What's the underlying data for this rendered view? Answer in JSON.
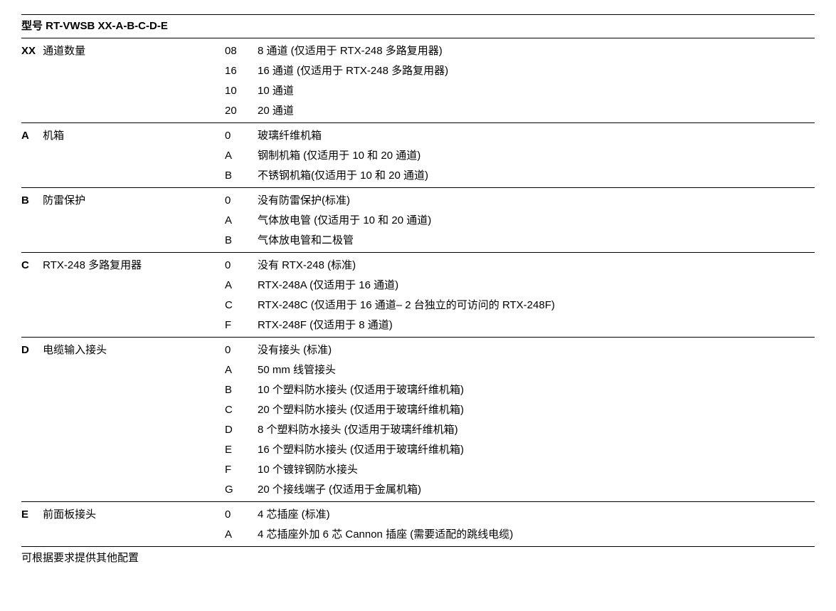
{
  "header": "型号 RT-VWSB XX-A-B-C-D-E",
  "footer": "可根据要求提供其他配置",
  "sections": [
    {
      "code": "XX",
      "label": "通道数量",
      "options": [
        {
          "c": "08",
          "d": "8 通道 (仅适用于 RTX-248 多路复用器)"
        },
        {
          "c": "16",
          "d": "16 通道 (仅适用于 RTX-248 多路复用器)"
        },
        {
          "c": "10",
          "d": "10 通道"
        },
        {
          "c": "20",
          "d": "20 通道"
        }
      ]
    },
    {
      "code": "A",
      "label": "机箱",
      "options": [
        {
          "c": "0",
          "d": "玻璃纤维机箱"
        },
        {
          "c": "A",
          "d": "钢制机箱 (仅适用于 10 和 20 通道)"
        },
        {
          "c": "B",
          "d": "不锈钢机箱(仅适用于 10 和 20 通道)"
        }
      ]
    },
    {
      "code": "B",
      "label": "防雷保护",
      "options": [
        {
          "c": "0",
          "d": "没有防雷保护(标准)"
        },
        {
          "c": "A",
          "d": "气体放电管 (仅适用于 10 和 20 通道)"
        },
        {
          "c": "B",
          "d": "气体放电管和二极管"
        }
      ]
    },
    {
      "code": "C",
      "label": "RTX-248 多路复用器",
      "options": [
        {
          "c": "0",
          "d": "没有 RTX-248 (标准)"
        },
        {
          "c": "A",
          "d": "RTX-248A (仅适用于 16 通道)"
        },
        {
          "c": "C",
          "d": "RTX-248C (仅适用于 16 通道– 2 台独立的可访问的 RTX-248F)"
        },
        {
          "c": "F",
          "d": "RTX-248F (仅适用于 8 通道)"
        }
      ]
    },
    {
      "code": "D",
      "label": "电缆输入接头",
      "options": [
        {
          "c": "0",
          "d": "没有接头 (标准)"
        },
        {
          "c": "A",
          "d": "50 mm 线管接头"
        },
        {
          "c": "B",
          "d": "10 个塑料防水接头 (仅适用于玻璃纤维机箱)"
        },
        {
          "c": "C",
          "d": "20 个塑料防水接头 (仅适用于玻璃纤维机箱)"
        },
        {
          "c": "D",
          "d": "8 个塑料防水接头 (仅适用于玻璃纤维机箱)"
        },
        {
          "c": "E",
          "d": "16 个塑料防水接头 (仅适用于玻璃纤维机箱)"
        },
        {
          "c": "F",
          "d": "10 个镀锌钢防水接头"
        },
        {
          "c": "G",
          "d": "20 个接线端子 (仅适用于金属机箱)"
        }
      ]
    },
    {
      "code": "E",
      "label": "前面板接头",
      "options": [
        {
          "c": "0",
          "d": "4 芯插座 (标准)"
        },
        {
          "c": "A",
          "d": "4 芯插座外加 6 芯 Cannon 插座 (需要适配的跳线电缆)"
        }
      ]
    }
  ]
}
